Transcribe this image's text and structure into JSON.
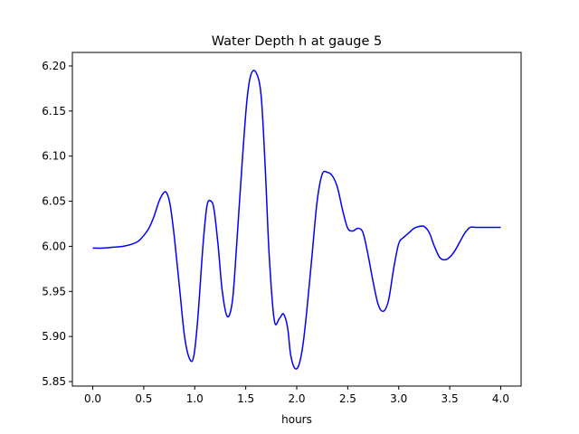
{
  "chart_data": {
    "type": "line",
    "title": "Water Depth h at gauge 5",
    "xlabel": "hours",
    "ylabel": "",
    "xlim": [
      -0.2,
      4.2
    ],
    "ylim": [
      5.845,
      6.215
    ],
    "xticks": [
      0.0,
      0.5,
      1.0,
      1.5,
      2.0,
      2.5,
      3.0,
      3.5,
      4.0
    ],
    "xtick_labels": [
      "0.0",
      "0.5",
      "1.0",
      "1.5",
      "2.0",
      "2.5",
      "3.0",
      "3.5",
      "4.0"
    ],
    "yticks": [
      5.85,
      5.9,
      5.95,
      6.0,
      6.05,
      6.1,
      6.15,
      6.2
    ],
    "ytick_labels": [
      "5.85",
      "5.90",
      "5.95",
      "6.00",
      "6.05",
      "6.10",
      "6.15",
      "6.20"
    ],
    "grid": false,
    "series": [
      {
        "color": "#0000ff",
        "x": [
          0.0,
          0.1,
          0.2,
          0.3,
          0.4,
          0.45,
          0.5,
          0.55,
          0.6,
          0.65,
          0.7,
          0.73,
          0.76,
          0.8,
          0.85,
          0.9,
          0.95,
          0.99,
          1.03,
          1.08,
          1.12,
          1.16,
          1.19,
          1.23,
          1.27,
          1.32,
          1.37,
          1.41,
          1.46,
          1.51,
          1.55,
          1.6,
          1.65,
          1.69,
          1.73,
          1.78,
          1.83,
          1.87,
          1.91,
          1.94,
          1.98,
          2.02,
          2.06,
          2.1,
          2.15,
          2.2,
          2.25,
          2.3,
          2.35,
          2.4,
          2.45,
          2.5,
          2.55,
          2.6,
          2.65,
          2.7,
          2.75,
          2.8,
          2.85,
          2.9,
          2.95,
          3.0,
          3.05,
          3.1,
          3.15,
          3.2,
          3.25,
          3.3,
          3.35,
          3.4,
          3.45,
          3.5,
          3.55,
          3.6,
          3.65,
          3.7,
          3.75,
          3.8,
          3.85,
          3.9,
          3.95,
          4.0
        ],
        "y": [
          5.998,
          5.998,
          5.999,
          6.0,
          6.003,
          6.006,
          6.012,
          6.02,
          6.033,
          6.05,
          6.06,
          6.058,
          6.045,
          6.01,
          5.955,
          5.9,
          5.875,
          5.878,
          5.92,
          6.0,
          6.045,
          6.05,
          6.04,
          6.0,
          5.95,
          5.922,
          5.94,
          6.0,
          6.085,
          6.16,
          6.19,
          6.193,
          6.168,
          6.09,
          5.99,
          5.918,
          5.92,
          5.925,
          5.91,
          5.88,
          5.865,
          5.868,
          5.89,
          5.93,
          5.99,
          6.05,
          6.08,
          6.082,
          6.078,
          6.065,
          6.04,
          6.02,
          6.017,
          6.02,
          6.015,
          5.99,
          5.96,
          5.935,
          5.928,
          5.94,
          5.975,
          6.003,
          6.01,
          6.015,
          6.02,
          6.022,
          6.022,
          6.015,
          6.0,
          5.988,
          5.985,
          5.988,
          5.995,
          6.005,
          6.015,
          6.021,
          6.021,
          6.021,
          6.021,
          6.021,
          6.021,
          6.021
        ]
      }
    ]
  }
}
